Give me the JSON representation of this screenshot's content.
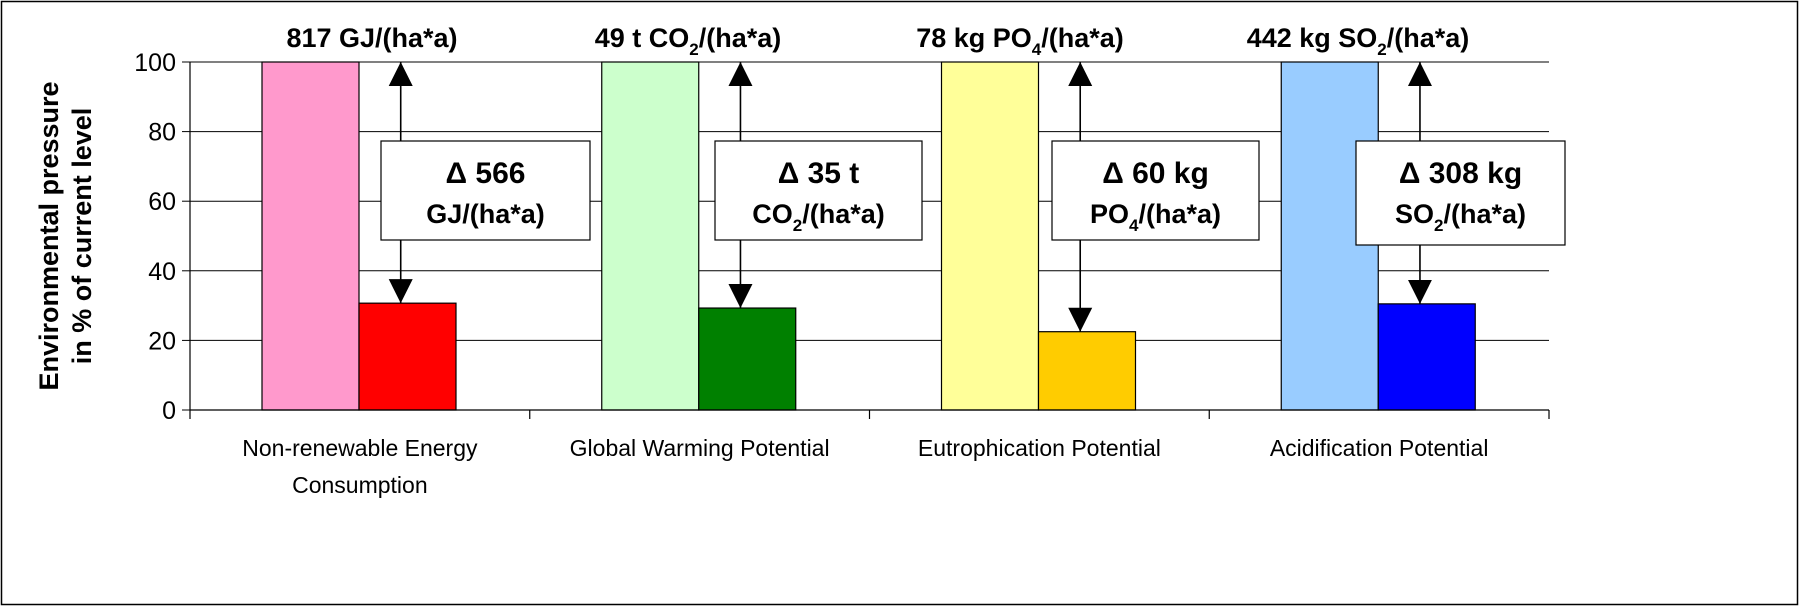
{
  "chart_data": {
    "type": "bar",
    "ylabel_lines": [
      "Environmental pressure",
      "in % of current level"
    ],
    "ylim": [
      0,
      100
    ],
    "yticks": [
      0,
      20,
      40,
      60,
      80,
      100
    ],
    "grid": true,
    "legend": "none",
    "categories": [
      {
        "label_lines": [
          "Non-renewable Energy",
          "Consumption"
        ],
        "current_value": 100,
        "reduced_value": 30.7,
        "current_color": "#ff99cc",
        "reduced_color": "#ff0000",
        "top_label": {
          "pre": "817 GJ/(ha*a)",
          "sub": "",
          "post": ""
        },
        "delta_line1": "Δ 566",
        "delta_line2": {
          "pre": "GJ/(ha*a)",
          "sub": "",
          "post": ""
        }
      },
      {
        "label_lines": [
          "Global Warming Potential"
        ],
        "current_value": 100,
        "reduced_value": 29.3,
        "current_color": "#ccffcc",
        "reduced_color": "#008000",
        "top_label": {
          "pre": "49 t CO",
          "sub": "2",
          "post": "/(ha*a)"
        },
        "delta_line1": "Δ 35 t",
        "delta_line2": {
          "pre": "CO",
          "sub": "2",
          "post": "/(ha*a)"
        }
      },
      {
        "label_lines": [
          "Eutrophication Potential"
        ],
        "current_value": 100,
        "reduced_value": 22.5,
        "current_color": "#ffff99",
        "reduced_color": "#ffcc00",
        "top_label": {
          "pre": "78 kg PO",
          "sub": "4",
          "post": "/(ha*a)"
        },
        "delta_line1": "Δ 60 kg",
        "delta_line2": {
          "pre": "PO",
          "sub": "4",
          "post": "/(ha*a)"
        }
      },
      {
        "label_lines": [
          "Acidification Potential"
        ],
        "current_value": 100,
        "reduced_value": 30.5,
        "current_color": "#99ccff",
        "reduced_color": "#0000ff",
        "top_label": {
          "pre": "442 kg SO",
          "sub": "2",
          "post": "/(ha*a)"
        },
        "delta_line1": "Δ 308 kg",
        "delta_line2": {
          "pre": "SO",
          "sub": "2",
          "post": "/(ha*a)"
        }
      }
    ]
  }
}
